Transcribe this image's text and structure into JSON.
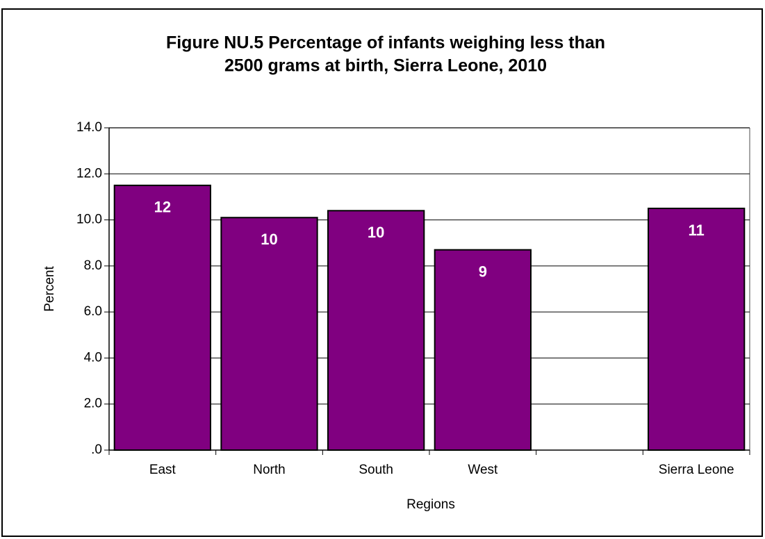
{
  "chart_data": {
    "type": "bar",
    "title": [
      "Figure NU.5  Percentage of infants weighing less than",
      "2500 grams at birth, Sierra Leone, 2010"
    ],
    "x_label": "Regions",
    "y_label": "Percent",
    "categories": [
      "East",
      "North",
      "South",
      "West",
      null,
      "Sierra Leone"
    ],
    "values": [
      11.5,
      10.1,
      10.4,
      8.7,
      null,
      10.5
    ],
    "value_labels": [
      "12",
      "10",
      "10",
      "9",
      null,
      "11"
    ],
    "color": "#800080",
    "ylim": [
      0,
      14
    ],
    "yticks": [
      {
        "value": 0,
        "label": ".0"
      },
      {
        "value": 2,
        "label": "2.0"
      },
      {
        "value": 4,
        "label": "4.0"
      },
      {
        "value": 6,
        "label": "6.0"
      },
      {
        "value": 8,
        "label": "8.0"
      },
      {
        "value": 10,
        "label": "10.0"
      },
      {
        "value": 12,
        "label": "12.0"
      },
      {
        "value": 14,
        "label": "14.0"
      }
    ],
    "grid": true
  }
}
